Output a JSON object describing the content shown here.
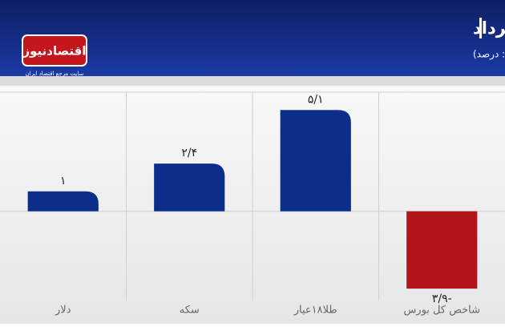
{
  "chart_data": {
    "type": "bar",
    "title": "بازدهی بازارها در هفته اول خرداد",
    "subtitle": "(واحد: درصد)",
    "logo": "اقتصادنیوز",
    "logo_tagline": "سایت مرجع اقتصاد ایران",
    "categories": [
      "دلار",
      "سکه",
      "طلا۱۸عیار",
      "شاخص کل بورس"
    ],
    "values": [
      1,
      2.4,
      5.1,
      -3.9
    ],
    "value_labels": [
      "۱",
      "۲/۴",
      "۵/۱",
      "۳/۹-"
    ],
    "colors": [
      "#0d2d8a",
      "#0d2d8a",
      "#0d2d8a",
      "#b3141c"
    ],
    "ylim": [
      -4.5,
      6
    ]
  }
}
